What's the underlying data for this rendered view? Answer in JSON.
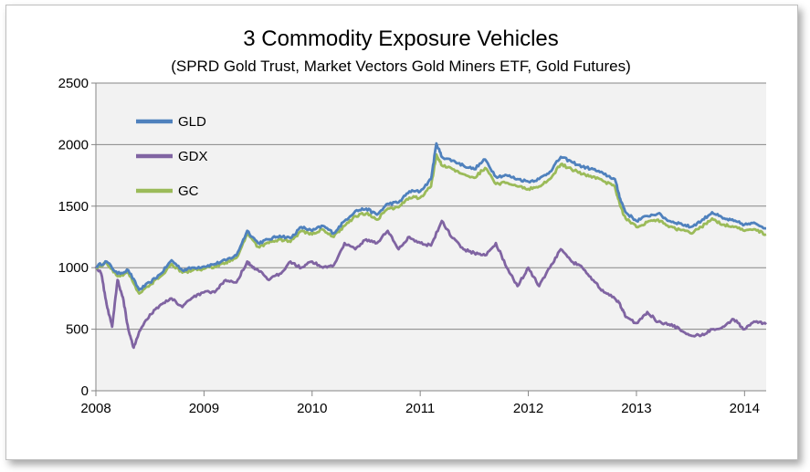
{
  "chart_data": {
    "type": "line",
    "title": "3 Commodity Exposure Vehicles",
    "subtitle": "(SPRD Gold Trust, Market Vectors Gold Miners ETF, Gold Futures)",
    "xlabel": "",
    "ylabel": "",
    "xlim": [
      2008.0,
      2014.2
    ],
    "ylim": [
      0,
      2500
    ],
    "yticks": [
      "0",
      "500",
      "1000",
      "1500",
      "2000",
      "2500"
    ],
    "ytick_values": [
      0,
      500,
      1000,
      1500,
      2000,
      2500
    ],
    "xticks": [
      "2008",
      "2009",
      "2010",
      "2011",
      "2012",
      "2013",
      "2014"
    ],
    "xtick_values": [
      2008,
      2009,
      2010,
      2011,
      2012,
      2013,
      2014
    ],
    "grid": true,
    "legend_position": "top-left",
    "colors": {
      "plot_background": "#f2f2f2",
      "grid": "#868686",
      "axis": "#868686"
    },
    "series": [
      {
        "name": "GLD",
        "color": "#4f81bd",
        "x": [
          2008.0,
          2008.1,
          2008.2,
          2008.3,
          2008.4,
          2008.5,
          2008.6,
          2008.7,
          2008.8,
          2008.9,
          2009.0,
          2009.1,
          2009.2,
          2009.3,
          2009.4,
          2009.5,
          2009.6,
          2009.7,
          2009.8,
          2009.9,
          2010.0,
          2010.1,
          2010.2,
          2010.3,
          2010.4,
          2010.5,
          2010.6,
          2010.7,
          2010.8,
          2010.9,
          2011.0,
          2011.1,
          2011.15,
          2011.2,
          2011.3,
          2011.4,
          2011.5,
          2011.6,
          2011.7,
          2011.8,
          2011.9,
          2012.0,
          2012.1,
          2012.2,
          2012.3,
          2012.4,
          2012.5,
          2012.6,
          2012.7,
          2012.8,
          2012.85,
          2012.9,
          2013.0,
          2013.1,
          2013.2,
          2013.3,
          2013.4,
          2013.5,
          2013.6,
          2013.7,
          2013.8,
          2013.9,
          2014.0,
          2014.1,
          2014.2
        ],
        "values": [
          1010,
          1050,
          950,
          980,
          820,
          880,
          950,
          1060,
          980,
          1000,
          1010,
          1030,
          1060,
          1100,
          1300,
          1200,
          1230,
          1260,
          1240,
          1330,
          1300,
          1340,
          1280,
          1380,
          1460,
          1480,
          1430,
          1520,
          1530,
          1620,
          1620,
          1720,
          2010,
          1900,
          1870,
          1830,
          1800,
          1880,
          1740,
          1750,
          1720,
          1700,
          1720,
          1780,
          1900,
          1860,
          1820,
          1800,
          1760,
          1720,
          1560,
          1450,
          1380,
          1420,
          1440,
          1380,
          1360,
          1330,
          1380,
          1450,
          1400,
          1380,
          1350,
          1360,
          1320
        ]
      },
      {
        "name": "GDX",
        "color": "#8064a2",
        "x": [
          2008.0,
          2008.05,
          2008.1,
          2008.15,
          2008.2,
          2008.25,
          2008.3,
          2008.35,
          2008.4,
          2008.5,
          2008.6,
          2008.7,
          2008.8,
          2008.9,
          2009.0,
          2009.1,
          2009.2,
          2009.3,
          2009.4,
          2009.45,
          2009.5,
          2009.6,
          2009.7,
          2009.8,
          2009.9,
          2010.0,
          2010.1,
          2010.2,
          2010.3,
          2010.4,
          2010.5,
          2010.6,
          2010.7,
          2010.8,
          2010.9,
          2011.0,
          2011.1,
          2011.2,
          2011.3,
          2011.4,
          2011.5,
          2011.6,
          2011.7,
          2011.8,
          2011.9,
          2012.0,
          2012.1,
          2012.2,
          2012.3,
          2012.4,
          2012.5,
          2012.6,
          2012.7,
          2012.8,
          2012.85,
          2012.9,
          2013.0,
          2013.1,
          2013.2,
          2013.3,
          2013.4,
          2013.5,
          2013.6,
          2013.7,
          2013.8,
          2013.9,
          2014.0,
          2014.1,
          2014.2
        ],
        "values": [
          1010,
          950,
          700,
          520,
          900,
          760,
          500,
          350,
          480,
          620,
          700,
          750,
          680,
          760,
          800,
          800,
          900,
          880,
          1050,
          1000,
          980,
          900,
          950,
          1050,
          1000,
          1050,
          1000,
          1020,
          1200,
          1150,
          1230,
          1200,
          1300,
          1150,
          1250,
          1200,
          1180,
          1380,
          1240,
          1150,
          1120,
          1100,
          1200,
          1000,
          850,
          1000,
          850,
          1000,
          1150,
          1050,
          1000,
          900,
          800,
          750,
          700,
          600,
          550,
          640,
          560,
          540,
          500,
          450,
          450,
          500,
          520,
          580,
          500,
          560,
          540
        ]
      },
      {
        "name": "GC",
        "color": "#9bbb59",
        "x": [
          2008.0,
          2008.1,
          2008.2,
          2008.3,
          2008.4,
          2008.5,
          2008.6,
          2008.7,
          2008.8,
          2008.9,
          2009.0,
          2009.1,
          2009.2,
          2009.3,
          2009.4,
          2009.5,
          2009.6,
          2009.7,
          2009.8,
          2009.9,
          2010.0,
          2010.1,
          2010.2,
          2010.3,
          2010.4,
          2010.5,
          2010.6,
          2010.7,
          2010.8,
          2010.9,
          2011.0,
          2011.1,
          2011.15,
          2011.2,
          2011.3,
          2011.4,
          2011.5,
          2011.6,
          2011.7,
          2011.8,
          2011.9,
          2012.0,
          2012.1,
          2012.2,
          2012.3,
          2012.4,
          2012.5,
          2012.6,
          2012.7,
          2012.8,
          2012.85,
          2012.9,
          2013.0,
          2013.1,
          2013.2,
          2013.3,
          2013.4,
          2013.5,
          2013.6,
          2013.7,
          2013.8,
          2013.9,
          2014.0,
          2014.1,
          2014.2
        ],
        "values": [
          1000,
          1040,
          930,
          960,
          790,
          860,
          930,
          1030,
          960,
          980,
          990,
          1010,
          1040,
          1080,
          1270,
          1170,
          1200,
          1230,
          1210,
          1300,
          1270,
          1310,
          1250,
          1340,
          1420,
          1440,
          1390,
          1480,
          1490,
          1570,
          1570,
          1660,
          1920,
          1830,
          1800,
          1760,
          1730,
          1810,
          1680,
          1690,
          1660,
          1640,
          1660,
          1720,
          1840,
          1800,
          1760,
          1740,
          1700,
          1660,
          1500,
          1400,
          1330,
          1370,
          1390,
          1330,
          1310,
          1280,
          1330,
          1400,
          1350,
          1330,
          1300,
          1310,
          1270
        ]
      }
    ]
  }
}
